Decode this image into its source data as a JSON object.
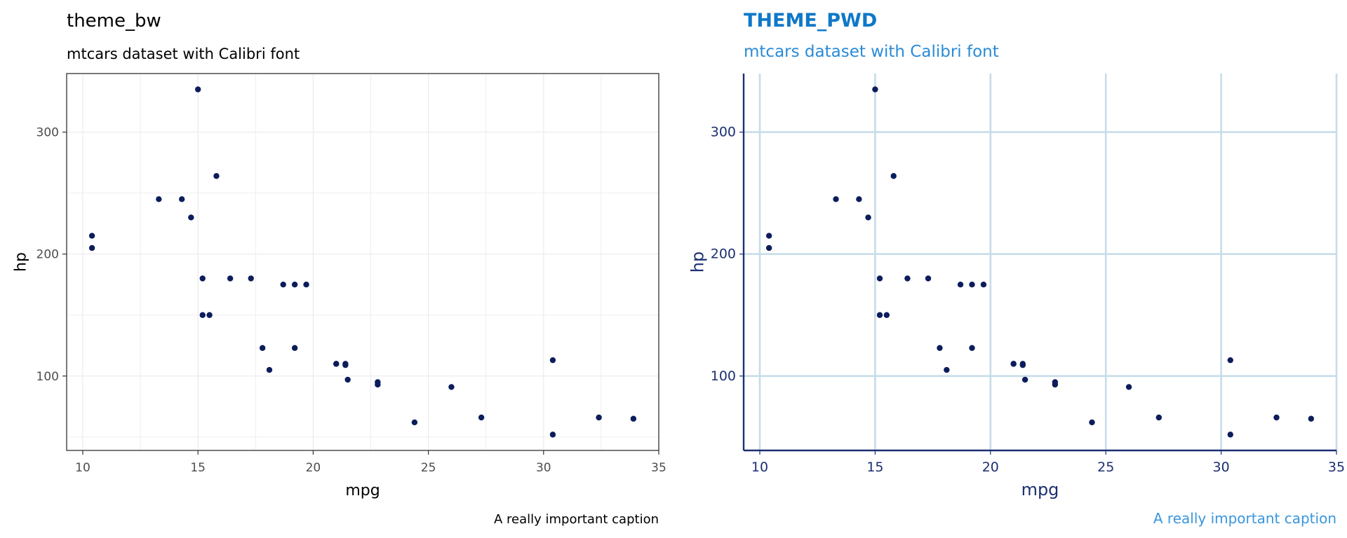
{
  "chart_data": [
    {
      "type": "scatter",
      "theme": "theme_bw",
      "title": "theme_bw",
      "subtitle": "mtcars dataset with Calibri font",
      "caption": "A really important caption",
      "xlabel": "mpg",
      "ylabel": "hp",
      "xlim": [
        9.3,
        35.0
      ],
      "ylim": [
        39.0,
        348.0
      ],
      "xticks": [
        10,
        15,
        20,
        25,
        30,
        35
      ],
      "xminor": [
        12.5,
        17.5,
        22.5,
        27.5,
        32.5
      ],
      "yticks": [
        100,
        200,
        300
      ],
      "yminor": [
        50,
        150,
        250
      ],
      "grid": true,
      "point_color": "#0c1d5c",
      "grid_color": "#ebebeb",
      "x": [
        21.0,
        21.0,
        22.8,
        21.4,
        18.7,
        18.1,
        14.3,
        24.4,
        22.8,
        19.2,
        17.8,
        16.4,
        17.3,
        15.2,
        10.4,
        10.4,
        14.7,
        32.4,
        30.4,
        33.9,
        21.5,
        15.5,
        15.2,
        13.3,
        19.2,
        27.3,
        26.0,
        30.4,
        15.8,
        19.7,
        15.0,
        21.4
      ],
      "y": [
        110,
        110,
        93,
        110,
        175,
        105,
        245,
        62,
        95,
        123,
        123,
        180,
        180,
        180,
        205,
        215,
        230,
        66,
        52,
        65,
        97,
        150,
        150,
        245,
        175,
        66,
        91,
        113,
        264,
        175,
        335,
        109
      ]
    },
    {
      "type": "scatter",
      "theme": "THEME_PWD",
      "title": "THEME_PWD",
      "subtitle": "mtcars dataset with Calibri font",
      "caption": "A really important caption",
      "xlabel": "mpg",
      "ylabel": "hp",
      "xlim": [
        9.3,
        35.0
      ],
      "ylim": [
        39.0,
        348.0
      ],
      "xticks": [
        10,
        15,
        20,
        25,
        30,
        35
      ],
      "yticks": [
        100,
        200,
        300
      ],
      "grid": true,
      "point_color": "#0c1d5c",
      "grid_color": "#c7dcea",
      "axis_color": "#1b2f72",
      "title_color": "#0f78c8",
      "x": [
        21.0,
        21.0,
        22.8,
        21.4,
        18.7,
        18.1,
        14.3,
        24.4,
        22.8,
        19.2,
        17.8,
        16.4,
        17.3,
        15.2,
        10.4,
        10.4,
        14.7,
        32.4,
        30.4,
        33.9,
        21.5,
        15.5,
        15.2,
        13.3,
        19.2,
        27.3,
        26.0,
        30.4,
        15.8,
        19.7,
        15.0,
        21.4
      ],
      "y": [
        110,
        110,
        93,
        110,
        175,
        105,
        245,
        62,
        95,
        123,
        123,
        180,
        180,
        180,
        205,
        215,
        230,
        66,
        52,
        65,
        97,
        150,
        150,
        245,
        175,
        66,
        91,
        113,
        264,
        175,
        335,
        109
      ]
    }
  ]
}
